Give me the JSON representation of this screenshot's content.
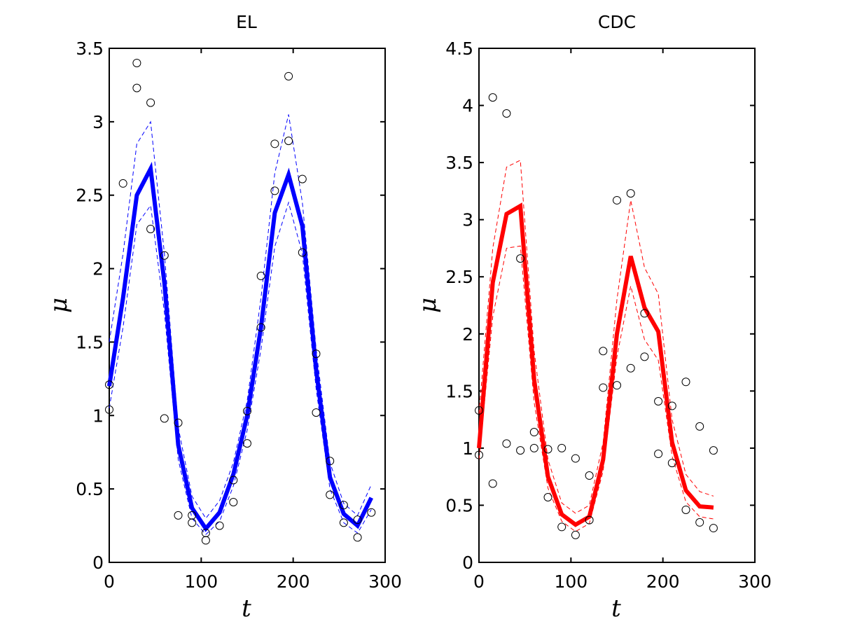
{
  "chart_data": [
    {
      "type": "line",
      "title": "EL",
      "xlabel": "t",
      "ylabel": "μ",
      "xlim": [
        0,
        300
      ],
      "ylim": [
        0,
        3.5
      ],
      "xticks": [
        "0",
        "100",
        "200",
        "300"
      ],
      "yticks": [
        "0",
        "0.5",
        "1",
        "1.5",
        "2",
        "2.5",
        "3",
        "3.5"
      ],
      "grid": false,
      "color": "#0000ff",
      "series": [
        {
          "role": "estimate",
          "x": [
            0,
            15,
            30,
            45,
            60,
            75,
            90,
            105,
            120,
            135,
            150,
            165,
            180,
            195,
            210,
            225,
            240,
            255,
            270,
            285
          ],
          "y": [
            1.2,
            1.8,
            2.5,
            2.68,
            1.9,
            0.8,
            0.37,
            0.23,
            0.34,
            0.6,
            1.0,
            1.6,
            2.38,
            2.64,
            2.29,
            1.31,
            0.58,
            0.33,
            0.25,
            0.44
          ]
        },
        {
          "role": "upper-band",
          "x": [
            0,
            15,
            30,
            45,
            60,
            75,
            90,
            105,
            120,
            135,
            150,
            165,
            180,
            195,
            210,
            225,
            240,
            255,
            270,
            285
          ],
          "y": [
            1.5,
            2.1,
            2.85,
            3.0,
            2.1,
            0.92,
            0.45,
            0.3,
            0.42,
            0.68,
            1.1,
            1.8,
            2.65,
            3.05,
            2.45,
            1.45,
            0.68,
            0.4,
            0.32,
            0.53
          ]
        },
        {
          "role": "lower-band",
          "x": [
            0,
            15,
            30,
            45,
            60,
            75,
            90,
            105,
            120,
            135,
            150,
            165,
            180,
            195,
            210,
            225,
            240,
            255,
            270,
            285
          ],
          "y": [
            1.05,
            1.6,
            2.3,
            2.43,
            1.7,
            0.7,
            0.3,
            0.19,
            0.28,
            0.52,
            0.9,
            1.45,
            2.15,
            2.45,
            2.1,
            1.18,
            0.5,
            0.27,
            0.2,
            0.36
          ]
        }
      ],
      "observations": [
        [
          0,
          1.21
        ],
        [
          0,
          1.04
        ],
        [
          15,
          2.58
        ],
        [
          30,
          3.4
        ],
        [
          30,
          3.23
        ],
        [
          45,
          3.13
        ],
        [
          45,
          2.27
        ],
        [
          60,
          2.09
        ],
        [
          60,
          0.98
        ],
        [
          75,
          0.95
        ],
        [
          75,
          0.32
        ],
        [
          90,
          0.32
        ],
        [
          90,
          0.27
        ],
        [
          105,
          0.2
        ],
        [
          105,
          0.15
        ],
        [
          120,
          0.25
        ],
        [
          135,
          0.41
        ],
        [
          135,
          0.56
        ],
        [
          150,
          0.81
        ],
        [
          150,
          1.03
        ],
        [
          165,
          1.6
        ],
        [
          165,
          1.95
        ],
        [
          180,
          2.85
        ],
        [
          180,
          2.53
        ],
        [
          195,
          3.31
        ],
        [
          195,
          2.87
        ],
        [
          210,
          2.61
        ],
        [
          210,
          2.11
        ],
        [
          225,
          1.42
        ],
        [
          225,
          1.02
        ],
        [
          240,
          0.69
        ],
        [
          240,
          0.46
        ],
        [
          255,
          0.39
        ],
        [
          255,
          0.27
        ],
        [
          270,
          0.29
        ],
        [
          270,
          0.17
        ],
        [
          285,
          0.34
        ]
      ]
    },
    {
      "type": "line",
      "title": "CDC",
      "xlabel": "t",
      "ylabel": "μ",
      "xlim": [
        0,
        300
      ],
      "ylim": [
        0,
        4.5
      ],
      "xticks": [
        "0",
        "100",
        "200",
        "300"
      ],
      "yticks": [
        "0",
        "0.5",
        "1",
        "1.5",
        "2",
        "2.5",
        "3",
        "3.5",
        "4",
        "4.5"
      ],
      "grid": false,
      "color": "#ff0000",
      "series": [
        {
          "role": "estimate",
          "x": [
            0,
            15,
            30,
            45,
            60,
            75,
            90,
            105,
            120,
            135,
            150,
            165,
            180,
            195,
            210,
            225,
            240,
            255
          ],
          "y": [
            1.0,
            2.45,
            3.05,
            3.12,
            1.6,
            0.75,
            0.42,
            0.33,
            0.4,
            0.9,
            2.0,
            2.68,
            2.23,
            2.02,
            1.05,
            0.63,
            0.49,
            0.48
          ]
        },
        {
          "role": "upper-band",
          "x": [
            0,
            15,
            30,
            45,
            60,
            75,
            90,
            105,
            120,
            135,
            150,
            165,
            180,
            195,
            210,
            225,
            240,
            255
          ],
          "y": [
            1.3,
            2.75,
            3.46,
            3.52,
            1.85,
            0.9,
            0.52,
            0.43,
            0.5,
            1.05,
            2.3,
            3.17,
            2.58,
            2.35,
            1.25,
            0.77,
            0.62,
            0.58
          ]
        },
        {
          "role": "lower-band",
          "x": [
            0,
            15,
            30,
            45,
            60,
            75,
            90,
            105,
            120,
            135,
            150,
            165,
            180,
            195,
            210,
            225,
            240,
            255
          ],
          "y": [
            0.9,
            2.15,
            2.75,
            2.77,
            1.4,
            0.65,
            0.36,
            0.27,
            0.34,
            0.8,
            1.8,
            2.42,
            1.95,
            1.77,
            0.93,
            0.53,
            0.4,
            0.38
          ]
        }
      ],
      "observations": [
        [
          0,
          1.33
        ],
        [
          0,
          0.94
        ],
        [
          15,
          4.07
        ],
        [
          15,
          0.69
        ],
        [
          30,
          3.93
        ],
        [
          30,
          1.04
        ],
        [
          45,
          2.66
        ],
        [
          45,
          0.98
        ],
        [
          60,
          1.14
        ],
        [
          60,
          1.0
        ],
        [
          75,
          0.99
        ],
        [
          75,
          0.57
        ],
        [
          90,
          1.0
        ],
        [
          90,
          0.31
        ],
        [
          105,
          0.91
        ],
        [
          105,
          0.24
        ],
        [
          120,
          0.76
        ],
        [
          120,
          0.37
        ],
        [
          135,
          1.85
        ],
        [
          135,
          1.53
        ],
        [
          150,
          3.17
        ],
        [
          150,
          1.55
        ],
        [
          165,
          3.23
        ],
        [
          165,
          1.7
        ],
        [
          180,
          2.18
        ],
        [
          180,
          1.8
        ],
        [
          195,
          1.41
        ],
        [
          195,
          0.95
        ],
        [
          210,
          1.37
        ],
        [
          210,
          0.87
        ],
        [
          225,
          1.58
        ],
        [
          225,
          0.46
        ],
        [
          240,
          1.19
        ],
        [
          240,
          0.35
        ],
        [
          255,
          0.98
        ],
        [
          255,
          0.3
        ]
      ]
    }
  ]
}
